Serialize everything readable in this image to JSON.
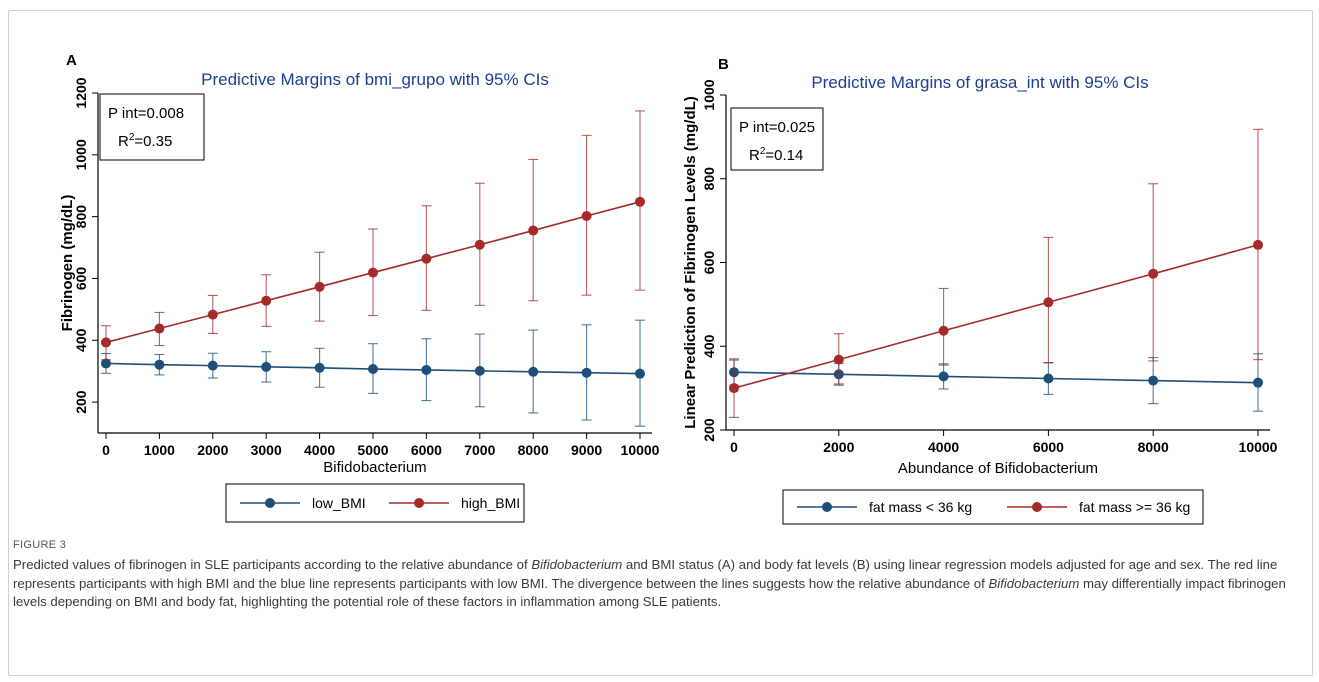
{
  "figure_label": "FIGURE 3",
  "caption": {
    "p1": "Predicted values of fibrinogen in SLE participants according to the relative abundance of ",
    "p2": "Bifidobacterium",
    "p3": " and BMI status (A) and body fat levels (B) using linear regression models adjusted for age and sex. The red line represents participants with high BMI and the blue line represents participants with low BMI. The divergence between the lines suggests how the relative abundance of ",
    "p4": "Bifidobacterium",
    "p5": " may differentially impact fibrinogen levels depending on BMI and body fat, highlighting the potential role of these factors in inflammation among SLE patients."
  },
  "colors": {
    "blue": "#1f4e79",
    "red": "#a52a2a",
    "title": "#1a3f8f"
  },
  "chart_data": [
    {
      "type": "line",
      "panel_label": "A",
      "title": "Predictive Margins of bmi_grupo with 95% CIs",
      "xlabel": "Bifidobacterium",
      "ylabel": "Fibrinogen (mg/dL)",
      "xlim": [
        0,
        10000
      ],
      "ylim": [
        100,
        1200
      ],
      "x_ticks": [
        0,
        1000,
        2000,
        3000,
        4000,
        5000,
        6000,
        7000,
        8000,
        9000,
        10000
      ],
      "y_ticks": [
        200,
        400,
        600,
        800,
        1000,
        1200
      ],
      "annotation": {
        "line1": "P int=0.008",
        "line2_prefix": "R",
        "line2_sup": "2",
        "line2_suffix": "=0.35"
      },
      "legend_position": "bottom",
      "series": [
        {
          "name": "low_BMI",
          "color": "#1f4e79",
          "x": [
            0,
            1000,
            2000,
            3000,
            4000,
            5000,
            6000,
            7000,
            8000,
            9000,
            10000
          ],
          "y": [
            325,
            321,
            318,
            314,
            311,
            307,
            304,
            301,
            298,
            295,
            292
          ],
          "lower": [
            293,
            288,
            278,
            265,
            248,
            228,
            205,
            185,
            165,
            142,
            122
          ],
          "upper": [
            357,
            354,
            358,
            363,
            374,
            389,
            405,
            420,
            433,
            450,
            465
          ]
        },
        {
          "name": "high_BMI",
          "color": "#a52a2a",
          "x": [
            0,
            1000,
            2000,
            3000,
            4000,
            5000,
            6000,
            7000,
            8000,
            9000,
            10000
          ],
          "y": [
            393,
            438,
            483,
            528,
            573,
            619,
            664,
            709,
            755,
            802,
            848
          ],
          "lower": [
            337,
            383,
            422,
            445,
            462,
            480,
            497,
            513,
            528,
            546,
            562
          ],
          "upper": [
            447,
            490,
            545,
            612,
            685,
            760,
            835,
            908,
            985,
            1063,
            1142
          ]
        }
      ]
    },
    {
      "type": "line",
      "panel_label": "B",
      "title": "Predictive Margins of grasa_int with 95% CIs",
      "xlabel": "Abundance of Bifidobacterium",
      "ylabel": "Linear Prediction of Fibrinogen Levels (mg/dL)",
      "xlim": [
        0,
        10000
      ],
      "ylim": [
        200,
        1000
      ],
      "x_ticks": [
        0,
        2000,
        4000,
        6000,
        8000,
        10000
      ],
      "y_ticks": [
        200,
        400,
        600,
        800,
        1000
      ],
      "annotation": {
        "line1": "P int=0.025",
        "line2_prefix": "R",
        "line2_sup": "2",
        "line2_suffix": "=0.14"
      },
      "legend_position": "bottom",
      "series": [
        {
          "name": "fat mass < 36 kg",
          "color": "#1f4e79",
          "x": [
            0,
            2000,
            4000,
            6000,
            8000,
            10000
          ],
          "y": [
            338,
            333,
            328,
            323,
            318,
            313
          ],
          "lower": [
            307,
            307,
            298,
            285,
            263,
            245
          ],
          "upper": [
            367,
            359,
            358,
            361,
            373,
            382
          ]
        },
        {
          "name": "fat mass >= 36 kg",
          "color": "#a52a2a",
          "x": [
            0,
            2000,
            4000,
            6000,
            8000,
            10000
          ],
          "y": [
            300,
            368,
            437,
            505,
            573,
            642
          ],
          "lower": [
            230,
            310,
            355,
            360,
            365,
            368
          ],
          "upper": [
            370,
            430,
            538,
            660,
            788,
            918
          ]
        }
      ]
    }
  ]
}
